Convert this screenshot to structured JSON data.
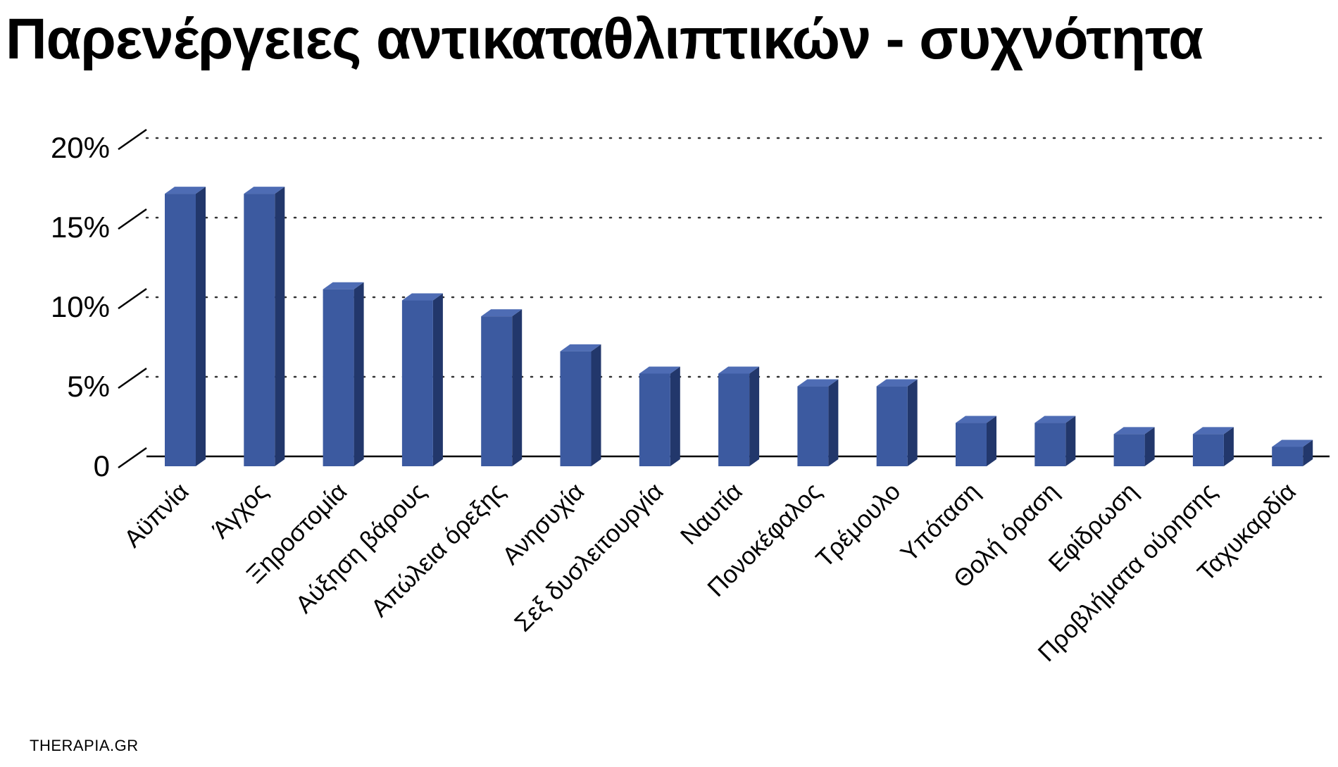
{
  "chart_data": {
    "type": "bar",
    "title": "Παρενέργειες αντικαταθλιπτικών - συχνότητα",
    "xlabel": "",
    "ylabel": "",
    "ylim": [
      0,
      20
    ],
    "y_ticks": [
      {
        "value": 0,
        "label": "0"
      },
      {
        "value": 5,
        "label": "5%"
      },
      {
        "value": 10,
        "label": "10%"
      },
      {
        "value": 15,
        "label": "15%"
      },
      {
        "value": 20,
        "label": "20%"
      }
    ],
    "categories": [
      "Αϋπνία",
      "Άγχος",
      "Ξηροστομία",
      "Αύξηση βάρους",
      "Απώλεια όρεξης",
      "Ανησυχία",
      "Σεξ δυσλειτουργία",
      "Ναυτία",
      "Πονοκέφαλος",
      "Τρέμουλο",
      "Υπόταση",
      "Θολή όραση",
      "Εφίδρωση",
      "Προβλήματα ούρησης",
      "Ταχυκαρδία"
    ],
    "values": [
      16.5,
      16.5,
      10.5,
      9.8,
      8.8,
      6.6,
      5.2,
      5.2,
      4.4,
      4.4,
      2.1,
      2.1,
      1.4,
      1.4,
      0.6
    ],
    "grid": true,
    "grid_style": "dotted",
    "legend": "none",
    "style": "3d-column",
    "colors": {
      "bar_front": "#3c5aa0",
      "bar_side": "#22376b",
      "bar_top": "#4e6cb4",
      "axis": "#000000",
      "grid": "#333333",
      "text": "#000000"
    }
  },
  "footer": {
    "source": "THERAPIA.GR"
  }
}
